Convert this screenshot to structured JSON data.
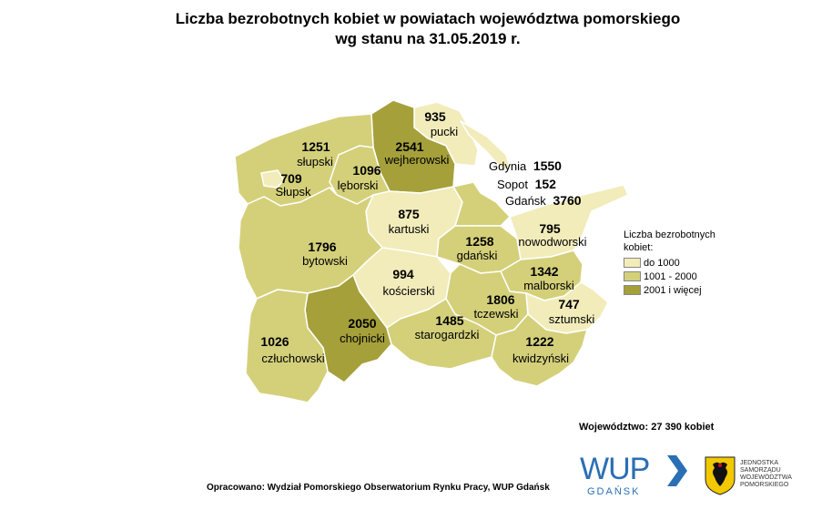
{
  "title": {
    "line1": "Liczba bezrobotnych kobiet w powiatach województwa pomorskiego",
    "line2": "wg stanu na 31.05.2019 r."
  },
  "colors": {
    "low": "#f2ecbb",
    "mid": "#d4d07a",
    "high": "#a5a03a",
    "border": "#ffffff"
  },
  "counties": [
    {
      "id": "pucki",
      "name": "pucki",
      "value": "935",
      "class": "low"
    },
    {
      "id": "wejherowski",
      "name": "wejherowski",
      "value": "2541",
      "class": "high"
    },
    {
      "id": "slupski",
      "name": "słupski",
      "value": "1251",
      "class": "mid"
    },
    {
      "id": "slupsk",
      "name": "Słupsk",
      "value": "709",
      "class": "low"
    },
    {
      "id": "leborski",
      "name": "lęborski",
      "value": "1096",
      "class": "mid"
    },
    {
      "id": "kartuski",
      "name": "kartuski",
      "value": "875",
      "class": "low"
    },
    {
      "id": "bytowski",
      "name": "bytowski",
      "value": "1796",
      "class": "mid"
    },
    {
      "id": "gdanski",
      "name": "gdański",
      "value": "1258",
      "class": "mid"
    },
    {
      "id": "nowodworski",
      "name": "nowodworski",
      "value": "795",
      "class": "low"
    },
    {
      "id": "koscierski",
      "name": "kościerski",
      "value": "994",
      "class": "low"
    },
    {
      "id": "malborski",
      "name": "malborski",
      "value": "1342",
      "class": "mid"
    },
    {
      "id": "tczewski",
      "name": "tczewski",
      "value": "1806",
      "class": "mid"
    },
    {
      "id": "sztumski",
      "name": "sztumski",
      "value": "747",
      "class": "low"
    },
    {
      "id": "chojnicki",
      "name": "chojnicki",
      "value": "2050",
      "class": "high"
    },
    {
      "id": "starogardzki",
      "name": "starogardzki",
      "value": "1485",
      "class": "mid"
    },
    {
      "id": "czluchowski",
      "name": "człuchowski",
      "value": "1026",
      "class": "mid"
    },
    {
      "id": "kwidzynski",
      "name": "kwidzyński",
      "value": "1222",
      "class": "mid"
    }
  ],
  "cities": [
    {
      "name": "Gdynia",
      "value": "1550"
    },
    {
      "name": "Sopot",
      "value": "152"
    },
    {
      "name": "Gdańsk",
      "value": "3760"
    }
  ],
  "legend": {
    "title": "Liczba bezrobotnych kobiet:",
    "items": [
      {
        "label": "do 1000",
        "color": "#f2ecbb"
      },
      {
        "label": "1001 - 2000",
        "color": "#d4d07a"
      },
      {
        "label": "2001 i więcej",
        "color": "#a5a03a"
      }
    ]
  },
  "total": "Województwo: 27 390 kobiet",
  "source": "Opracowano: Wydział Pomorskiego Obserwatorium Rynku Pracy, WUP Gdańsk",
  "logos": {
    "wup_big": "WUP",
    "wup_small": "GDAŃSK",
    "crest_lines": [
      "JEDNOSTKA",
      "SAMORZĄDU",
      "WOJEWÓDZTWA",
      "POMORSKIEGO"
    ]
  }
}
